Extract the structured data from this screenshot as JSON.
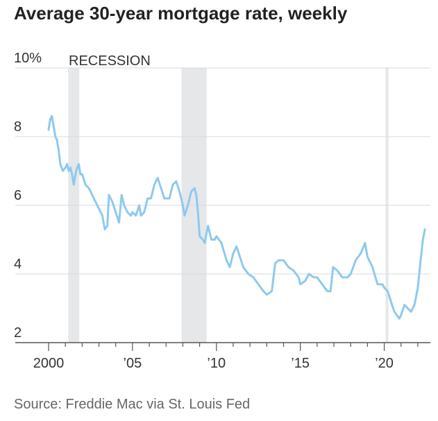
{
  "title": "Average 30-year mortgage rate, weekly",
  "source": "Source: Freddie Mac via St. Louis Fed",
  "colors": {
    "line": "#8ec9ee",
    "recession": "#e6e7e9",
    "grid": "#d9d9d9",
    "axis": "#555555"
  },
  "chart_data": {
    "type": "line",
    "title": "Average 30-year mortgage rate, weekly",
    "xlabel": "",
    "ylabel": "",
    "xlim": [
      2000,
      2022.5
    ],
    "ylim": [
      2,
      10
    ],
    "y_ticks": [
      {
        "value": 10,
        "label": "10%"
      },
      {
        "value": 8,
        "label": "8"
      },
      {
        "value": 6,
        "label": "6"
      },
      {
        "value": 4,
        "label": "4"
      },
      {
        "value": 2,
        "label": "2"
      }
    ],
    "x_ticks": [
      {
        "value": 2000,
        "label": "2000"
      },
      {
        "value": 2005,
        "label": "’05"
      },
      {
        "value": 2010,
        "label": "’10"
      },
      {
        "value": 2015,
        "label": "’15"
      },
      {
        "value": 2020,
        "label": "’20"
      }
    ],
    "grid": "horizontal",
    "recession_label": "RECESSION",
    "recessions": [
      [
        2001.17,
        2001.83
      ],
      [
        2007.92,
        2009.42
      ],
      [
        2020.08,
        2020.25
      ]
    ],
    "series": [
      {
        "x": [
          2000.0,
          2000.1,
          2000.2,
          2000.3,
          2000.4,
          2000.5,
          2000.6,
          2000.7,
          2000.85,
          2001.0,
          2001.1,
          2001.2,
          2001.3,
          2001.4,
          2001.5,
          2001.6,
          2001.7,
          2001.8,
          2001.9,
          2002.0,
          2002.2,
          2002.4,
          2002.6,
          2002.8,
          2003.0,
          2003.2,
          2003.35,
          2003.5,
          2003.6,
          2003.8,
          2004.0,
          2004.2,
          2004.35,
          2004.5,
          2004.7,
          2004.9,
          2005.0,
          2005.2,
          2005.4,
          2005.5,
          2005.7,
          2005.9,
          2006.1,
          2006.3,
          2006.5,
          2006.7,
          2006.9,
          2007.0,
          2007.2,
          2007.4,
          2007.6,
          2007.8,
          2008.0,
          2008.1,
          2008.3,
          2008.5,
          2008.7,
          2008.8,
          2008.9,
          2009.0,
          2009.2,
          2009.3,
          2009.5,
          2009.7,
          2009.9,
          2010.0,
          2010.3,
          2010.6,
          2010.8,
          2011.0,
          2011.2,
          2011.4,
          2011.6,
          2011.9,
          2012.2,
          2012.5,
          2012.8,
          2013.0,
          2013.3,
          2013.5,
          2013.7,
          2014.0,
          2014.3,
          2014.6,
          2014.9,
          2015.0,
          2015.3,
          2015.5,
          2015.8,
          2016.0,
          2016.3,
          2016.6,
          2016.8,
          2016.95,
          2017.2,
          2017.5,
          2017.8,
          2018.0,
          2018.3,
          2018.6,
          2018.85,
          2019.0,
          2019.3,
          2019.6,
          2019.9,
          2020.0,
          2020.2,
          2020.4,
          2020.6,
          2020.9,
          2021.0,
          2021.2,
          2021.4,
          2021.6,
          2021.8,
          2022.0,
          2022.15,
          2022.3,
          2022.42
        ],
        "values": [
          8.2,
          8.5,
          8.6,
          8.3,
          8.0,
          7.9,
          7.6,
          7.2,
          7.0,
          7.1,
          7.2,
          7.0,
          7.1,
          6.9,
          6.6,
          6.9,
          7.1,
          7.2,
          6.9,
          6.9,
          6.6,
          6.5,
          6.3,
          6.1,
          5.9,
          5.7,
          5.3,
          5.4,
          6.3,
          6.1,
          5.8,
          5.5,
          6.3,
          6.0,
          5.8,
          5.7,
          5.8,
          5.7,
          6.0,
          5.7,
          5.8,
          6.2,
          6.2,
          6.6,
          6.8,
          6.5,
          6.2,
          6.2,
          6.2,
          6.6,
          6.7,
          6.4,
          6.0,
          5.7,
          6.0,
          6.4,
          6.5,
          6.3,
          5.8,
          5.1,
          5.0,
          4.9,
          5.4,
          5.0,
          5.0,
          5.1,
          4.9,
          4.4,
          4.2,
          4.6,
          4.8,
          4.5,
          4.2,
          4.0,
          3.9,
          3.7,
          3.5,
          3.4,
          3.5,
          4.3,
          4.4,
          4.4,
          4.2,
          4.1,
          3.9,
          3.7,
          3.8,
          4.0,
          3.9,
          3.9,
          3.7,
          3.5,
          3.5,
          4.2,
          4.1,
          3.9,
          3.9,
          4.0,
          4.4,
          4.6,
          4.9,
          4.5,
          4.2,
          3.7,
          3.7,
          3.6,
          3.5,
          3.2,
          2.9,
          2.7,
          2.8,
          3.1,
          3.0,
          2.9,
          3.1,
          3.6,
          4.3,
          5.0,
          5.3
        ]
      }
    ]
  }
}
